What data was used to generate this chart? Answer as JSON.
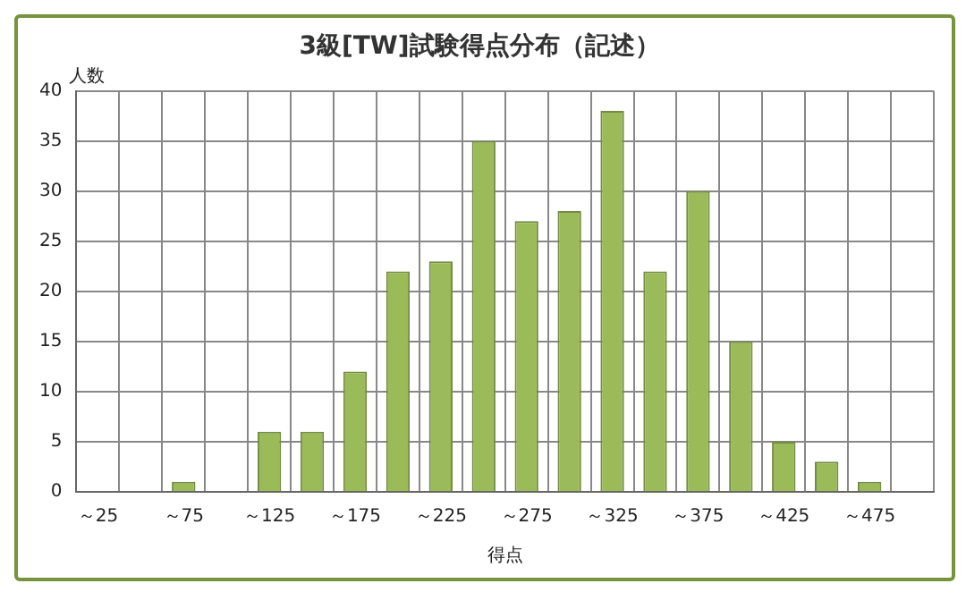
{
  "chart_data": {
    "type": "bar",
    "title": "3級[TW]試験得点分布（記述）",
    "xlabel": "得点",
    "ylabel": "人数",
    "categories": [
      "～25",
      null,
      "～75",
      null,
      "～125",
      null,
      "～175",
      null,
      "～225",
      null,
      "～275",
      null,
      "～325",
      null,
      "～375",
      null,
      "～425",
      null,
      "～475",
      null
    ],
    "values": [
      0,
      0,
      1,
      0,
      6,
      6,
      12,
      22,
      23,
      35,
      27,
      28,
      38,
      22,
      30,
      15,
      5,
      3,
      1,
      0
    ],
    "color": "#9bbb59",
    "ylim": [
      0,
      40
    ],
    "yticks": [
      0,
      5,
      10,
      15,
      20,
      25,
      30,
      35,
      40
    ],
    "grid": true,
    "legend": false
  }
}
